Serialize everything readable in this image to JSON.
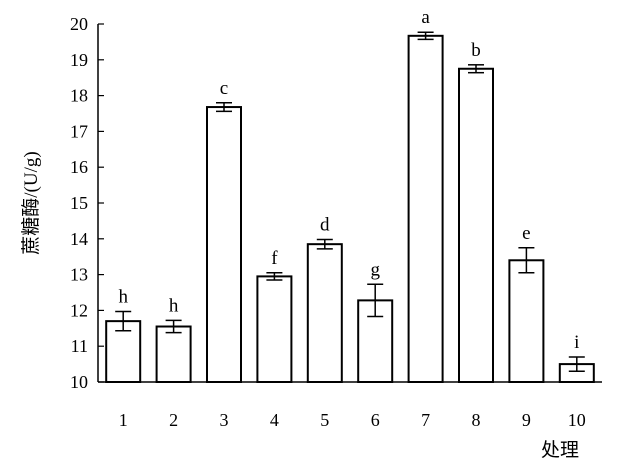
{
  "chart_data": {
    "type": "bar",
    "title": "",
    "xlabel": "处理",
    "ylabel": "蔗糖酶/(U/g)",
    "categories": [
      "1",
      "2",
      "3",
      "4",
      "5",
      "6",
      "7",
      "8",
      "9",
      "10"
    ],
    "values": [
      11.7,
      11.55,
      17.68,
      12.95,
      13.85,
      12.28,
      19.67,
      18.75,
      13.4,
      10.5
    ],
    "errors": [
      0.27,
      0.17,
      0.12,
      0.1,
      0.13,
      0.45,
      0.1,
      0.11,
      0.35,
      0.2
    ],
    "significance": [
      "h",
      "h",
      "c",
      "f",
      "d",
      "g",
      "a",
      "b",
      "e",
      "i"
    ],
    "ylim": [
      10,
      20
    ],
    "yticks": [
      "10",
      "11",
      "12",
      "13",
      "14",
      "15",
      "16",
      "17",
      "18",
      "19",
      "20"
    ],
    "grid": false,
    "legend": "none",
    "bar_fill": "#ffffff",
    "bar_stroke": "#000000"
  }
}
